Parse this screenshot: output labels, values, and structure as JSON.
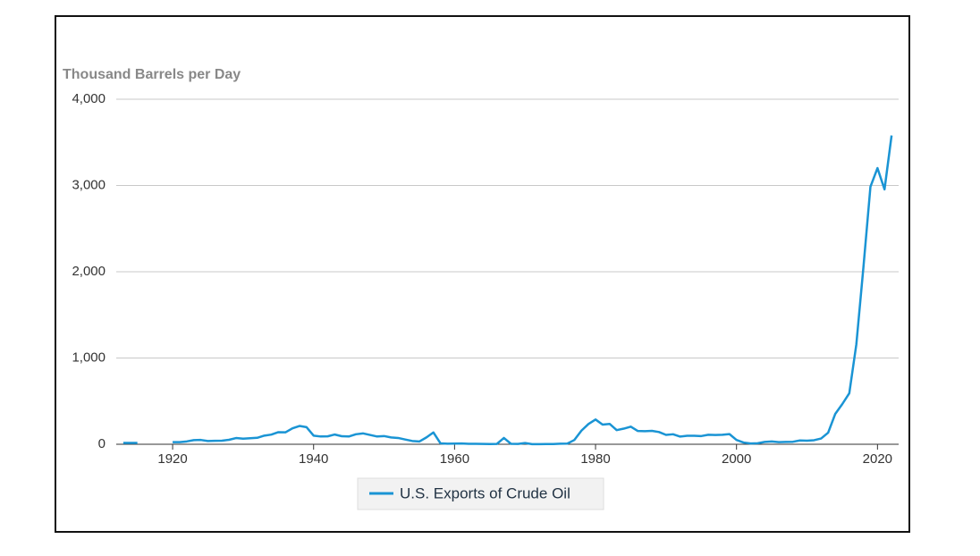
{
  "chart_data": {
    "type": "line",
    "y_axis_title": "Thousand Barrels per Day",
    "x": [
      1913,
      1914,
      1915,
      1916,
      1917,
      1918,
      1919,
      1920,
      1921,
      1922,
      1923,
      1924,
      1925,
      1926,
      1927,
      1928,
      1929,
      1930,
      1931,
      1932,
      1933,
      1934,
      1935,
      1936,
      1937,
      1938,
      1939,
      1940,
      1941,
      1942,
      1943,
      1944,
      1945,
      1946,
      1947,
      1948,
      1949,
      1950,
      1951,
      1952,
      1953,
      1954,
      1955,
      1956,
      1957,
      1958,
      1959,
      1960,
      1961,
      1962,
      1963,
      1964,
      1965,
      1966,
      1967,
      1968,
      1969,
      1970,
      1971,
      1972,
      1973,
      1974,
      1975,
      1976,
      1977,
      1978,
      1979,
      1980,
      1981,
      1982,
      1983,
      1984,
      1985,
      1986,
      1987,
      1988,
      1989,
      1990,
      1991,
      1992,
      1993,
      1994,
      1995,
      1996,
      1997,
      1998,
      1999,
      2000,
      2001,
      2002,
      2003,
      2004,
      2005,
      2006,
      2007,
      2008,
      2009,
      2010,
      2011,
      2012,
      2013,
      2014,
      2015,
      2016,
      2017,
      2018,
      2019,
      2020,
      2021,
      2022
    ],
    "series": [
      {
        "name": "U.S. Exports of Crude Oil",
        "color": "#1a94d4",
        "values": [
          15,
          15,
          15,
          null,
          null,
          null,
          null,
          24,
          25,
          33,
          48,
          50,
          38,
          40,
          42,
          52,
          72,
          65,
          70,
          75,
          100,
          112,
          140,
          138,
          185,
          212,
          198,
          100,
          90,
          92,
          113,
          93,
          90,
          116,
          126,
          108,
          90,
          95,
          79,
          73,
          55,
          38,
          32,
          79,
          137,
          11,
          7,
          8,
          9,
          5,
          5,
          4,
          3,
          4,
          73,
          5,
          4,
          14,
          1,
          1,
          2,
          3,
          6,
          8,
          50,
          158,
          235,
          287,
          228,
          236,
          164,
          181,
          204,
          154,
          151,
          155,
          142,
          109,
          116,
          89,
          98,
          99,
          95,
          110,
          108,
          110,
          118,
          50,
          20,
          9,
          12,
          27,
          32,
          25,
          27,
          29,
          44,
          42,
          47,
          67,
          134,
          351,
          465,
          591,
          1158,
          2048,
          2985,
          3201,
          2955,
          3580
        ]
      }
    ],
    "xlim": [
      1912,
      2023
    ],
    "xticks": [
      1920,
      1940,
      1960,
      1980,
      2000,
      2020
    ],
    "ylim": [
      0,
      4000
    ],
    "yticks": [
      0,
      {
        "value": 1000,
        "label": "1,000"
      },
      {
        "value": 2000,
        "label": "2,000"
      },
      {
        "value": 3000,
        "label": "3,000"
      },
      {
        "value": 4000,
        "label": "4,000"
      }
    ],
    "grid": true
  }
}
